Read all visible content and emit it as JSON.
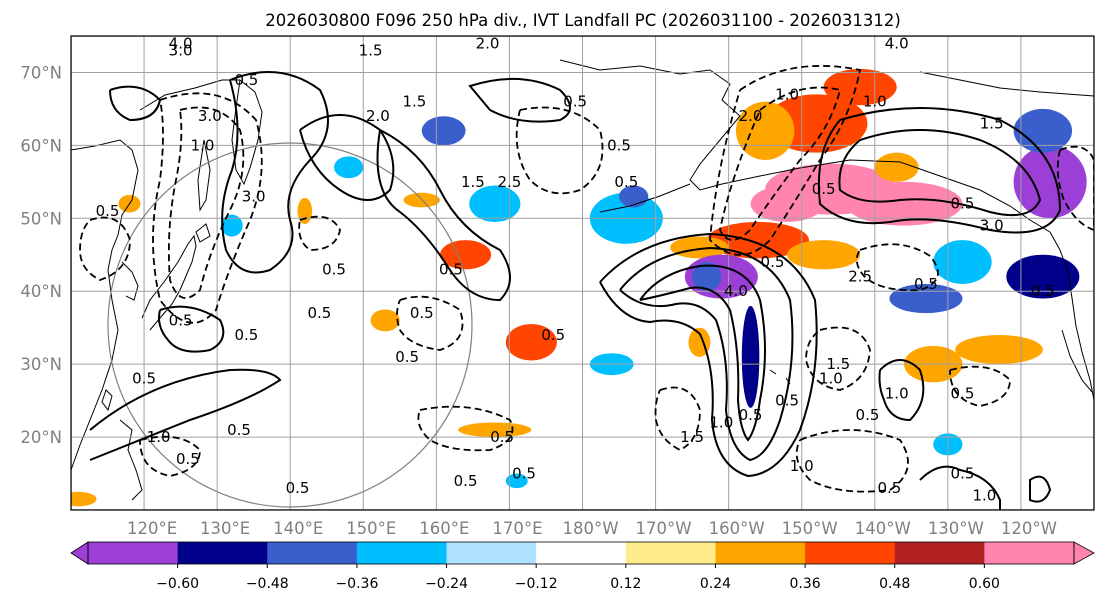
{
  "chart_data": {
    "type": "heatmap",
    "title": "2026030800 F096 250 hPa div., IVT Landfall PC (2026031100 - 2026031312)",
    "map": {
      "lon_range": [
        110,
        250
      ],
      "lat_range": [
        10,
        75
      ],
      "x_ticks": [
        {
          "lon": 120,
          "label": "120°E"
        },
        {
          "lon": 130,
          "label": "130°E"
        },
        {
          "lon": 140,
          "label": "140°E"
        },
        {
          "lon": 150,
          "label": "150°E"
        },
        {
          "lon": 160,
          "label": "160°E"
        },
        {
          "lon": 170,
          "label": "170°E"
        },
        {
          "lon": 180,
          "label": "180°W"
        },
        {
          "lon": 190,
          "label": "170°W"
        },
        {
          "lon": 200,
          "label": "160°W"
        },
        {
          "lon": 210,
          "label": "150°W"
        },
        {
          "lon": 220,
          "label": "140°W"
        },
        {
          "lon": 230,
          "label": "130°W"
        },
        {
          "lon": 240,
          "label": "120°W"
        }
      ],
      "y_ticks": [
        {
          "lat": 20,
          "label": "20°N"
        },
        {
          "lat": 30,
          "label": "30°N"
        },
        {
          "lat": 40,
          "label": "40°N"
        },
        {
          "lat": 50,
          "label": "50°N"
        },
        {
          "lat": 60,
          "label": "60°N"
        },
        {
          "lat": 70,
          "label": "70°N"
        }
      ],
      "grid": true
    },
    "colorbar": {
      "levels": [
        -0.72,
        -0.6,
        -0.48,
        -0.36,
        -0.24,
        -0.12,
        0.12,
        0.24,
        0.36,
        0.48,
        0.6,
        0.72
      ],
      "tick_values": [
        -0.6,
        -0.48,
        -0.36,
        -0.24,
        -0.12,
        0.12,
        0.24,
        0.36,
        0.48,
        0.6
      ],
      "tick_labels": [
        "−0.60",
        "−0.48",
        "−0.36",
        "−0.24",
        "−0.12",
        "0.12",
        "0.24",
        "0.36",
        "0.48",
        "0.60"
      ],
      "colors": [
        "#9b3fd6",
        "#00008b",
        "#3a5fcd",
        "#00bfff",
        "#b0e2ff",
        "#ffffff",
        "#ffec8b",
        "#ffa500",
        "#ff4500",
        "#b22222",
        "#ff85b0"
      ],
      "extend": "both",
      "under_color": "#9b3fd6",
      "over_color": "#ff85b0",
      "orientation": "horizontal",
      "position": "bottom"
    },
    "shading": [
      {
        "lon": 214,
        "lat": 54,
        "rx": 9,
        "ry": 3.5,
        "value": 0.65
      },
      {
        "lon": 224,
        "lat": 52,
        "rx": 8,
        "ry": 3,
        "value": 0.65
      },
      {
        "lon": 208,
        "lat": 52,
        "rx": 5,
        "ry": 2.5,
        "value": 0.65
      },
      {
        "lon": 212,
        "lat": 63,
        "rx": 7,
        "ry": 4,
        "value": 0.42
      },
      {
        "lon": 218,
        "lat": 68,
        "rx": 5,
        "ry": 2.5,
        "value": 0.42
      },
      {
        "lon": 205,
        "lat": 62,
        "rx": 4,
        "ry": 4,
        "value": 0.3
      },
      {
        "lon": 204,
        "lat": 47,
        "rx": 7,
        "ry": 2.5,
        "value": 0.42
      },
      {
        "lon": 213,
        "lat": 45,
        "rx": 5,
        "ry": 2,
        "value": 0.3
      },
      {
        "lon": 196,
        "lat": 46,
        "rx": 4,
        "ry": 1.5,
        "value": 0.3
      },
      {
        "lon": 173,
        "lat": 33,
        "rx": 3.5,
        "ry": 2.5,
        "value": 0.42
      },
      {
        "lon": 164,
        "lat": 45,
        "rx": 3.5,
        "ry": 2,
        "value": 0.42
      },
      {
        "lon": 158,
        "lat": 52.5,
        "rx": 2.5,
        "ry": 1,
        "value": 0.3
      },
      {
        "lon": 142,
        "lat": 51,
        "rx": 1,
        "ry": 1.8,
        "value": 0.3
      },
      {
        "lon": 118,
        "lat": 52,
        "rx": 1.5,
        "ry": 1.2,
        "value": 0.3
      },
      {
        "lon": 153,
        "lat": 36,
        "rx": 2,
        "ry": 1.5,
        "value": 0.3
      },
      {
        "lon": 196,
        "lat": 33,
        "rx": 1.5,
        "ry": 2,
        "value": 0.3
      },
      {
        "lon": 237,
        "lat": 32,
        "rx": 6,
        "ry": 2,
        "value": 0.3
      },
      {
        "lon": 168,
        "lat": 21,
        "rx": 5,
        "ry": 1,
        "value": 0.24
      },
      {
        "lon": 111,
        "lat": 11.5,
        "rx": 2.5,
        "ry": 1,
        "value": 0.3
      },
      {
        "lon": 228,
        "lat": 30,
        "rx": 4,
        "ry": 2.5,
        "value": 0.3
      },
      {
        "lon": 223,
        "lat": 57,
        "rx": 3,
        "ry": 2,
        "value": 0.24
      },
      {
        "lon": 199,
        "lat": 42,
        "rx": 5,
        "ry": 3,
        "value": -0.7
      },
      {
        "lon": 203,
        "lat": 31,
        "rx": 1.2,
        "ry": 7,
        "value": -0.55
      },
      {
        "lon": 197,
        "lat": 42,
        "rx": 2,
        "ry": 2,
        "value": -0.4
      },
      {
        "lon": 244,
        "lat": 55,
        "rx": 5,
        "ry": 5,
        "value": -0.7
      },
      {
        "lon": 243,
        "lat": 62,
        "rx": 4,
        "ry": 3,
        "value": -0.4
      },
      {
        "lon": 243,
        "lat": 42,
        "rx": 5,
        "ry": 3,
        "value": -0.55
      },
      {
        "lon": 227,
        "lat": 39,
        "rx": 5,
        "ry": 2,
        "value": -0.4
      },
      {
        "lon": 232,
        "lat": 44,
        "rx": 4,
        "ry": 3,
        "value": -0.3
      },
      {
        "lon": 186,
        "lat": 50,
        "rx": 5,
        "ry": 3.5,
        "value": -0.3
      },
      {
        "lon": 187,
        "lat": 53,
        "rx": 2,
        "ry": 1.5,
        "value": -0.4
      },
      {
        "lon": 168,
        "lat": 52,
        "rx": 3.5,
        "ry": 2.5,
        "value": -0.3
      },
      {
        "lon": 161,
        "lat": 62,
        "rx": 3,
        "ry": 2,
        "value": -0.4
      },
      {
        "lon": 184,
        "lat": 30,
        "rx": 3,
        "ry": 1.5,
        "value": -0.3
      },
      {
        "lon": 148,
        "lat": 57,
        "rx": 2,
        "ry": 1.5,
        "value": -0.3
      },
      {
        "lon": 132,
        "lat": 49,
        "rx": 1.5,
        "ry": 1.5,
        "value": -0.3
      },
      {
        "lon": 171,
        "lat": 14,
        "rx": 1.5,
        "ry": 1,
        "value": -0.3
      },
      {
        "lon": 230,
        "lat": 19,
        "rx": 2,
        "ry": 1.5,
        "value": -0.3
      }
    ],
    "contours": {
      "labels": [
        {
          "lon": 125,
          "lat": 74,
          "text": "4.0"
        },
        {
          "lon": 125,
          "lat": 73,
          "text": "3.0"
        },
        {
          "lon": 151,
          "lat": 73,
          "text": "1.5"
        },
        {
          "lon": 167,
          "lat": 74,
          "text": "2.0"
        },
        {
          "lon": 134,
          "lat": 69,
          "text": "0.5"
        },
        {
          "lon": 152,
          "lat": 64,
          "text": "2.0"
        },
        {
          "lon": 157,
          "lat": 66,
          "text": "1.5"
        },
        {
          "lon": 179,
          "lat": 66,
          "text": "0.5"
        },
        {
          "lon": 208,
          "lat": 67,
          "text": "1.0"
        },
        {
          "lon": 203,
          "lat": 64,
          "text": "2.0"
        },
        {
          "lon": 223,
          "lat": 74,
          "text": "4.0"
        },
        {
          "lon": 220,
          "lat": 66,
          "text": "1.0"
        },
        {
          "lon": 236,
          "lat": 63,
          "text": "1.5"
        },
        {
          "lon": 232,
          "lat": 52,
          "text": "0.5"
        },
        {
          "lon": 236,
          "lat": 49,
          "text": "3.0"
        },
        {
          "lon": 213,
          "lat": 54,
          "text": "0.5"
        },
        {
          "lon": 227,
          "lat": 41,
          "text": "0.5"
        },
        {
          "lon": 243,
          "lat": 40,
          "text": "0.5"
        },
        {
          "lon": 201,
          "lat": 40,
          "text": "4.0"
        },
        {
          "lon": 206,
          "lat": 44,
          "text": "0.5"
        },
        {
          "lon": 218,
          "lat": 42,
          "text": "2.5"
        },
        {
          "lon": 185,
          "lat": 60,
          "text": "0.5"
        },
        {
          "lon": 186,
          "lat": 55,
          "text": "0.5"
        },
        {
          "lon": 165,
          "lat": 55,
          "text": "1.5"
        },
        {
          "lon": 170,
          "lat": 55,
          "text": "2.5"
        },
        {
          "lon": 162,
          "lat": 43,
          "text": "0.5"
        },
        {
          "lon": 158,
          "lat": 37,
          "text": "0.5"
        },
        {
          "lon": 176,
          "lat": 34,
          "text": "0.5"
        },
        {
          "lon": 156,
          "lat": 31,
          "text": "0.5"
        },
        {
          "lon": 146,
          "lat": 43,
          "text": "0.5"
        },
        {
          "lon": 144,
          "lat": 37,
          "text": "0.5"
        },
        {
          "lon": 134,
          "lat": 34,
          "text": "0.5"
        },
        {
          "lon": 125,
          "lat": 36,
          "text": "0.5"
        },
        {
          "lon": 120,
          "lat": 28,
          "text": "0.5"
        },
        {
          "lon": 135,
          "lat": 53,
          "text": "3.0"
        },
        {
          "lon": 128,
          "lat": 60,
          "text": "1.0"
        },
        {
          "lon": 129,
          "lat": 64,
          "text": "3.0"
        },
        {
          "lon": 115,
          "lat": 51,
          "text": "0.5"
        },
        {
          "lon": 122,
          "lat": 20,
          "text": "1.0"
        },
        {
          "lon": 126,
          "lat": 17,
          "text": "0.5"
        },
        {
          "lon": 133,
          "lat": 21,
          "text": "0.5"
        },
        {
          "lon": 141,
          "lat": 13,
          "text": "0.5"
        },
        {
          "lon": 169,
          "lat": 20,
          "text": "0.5"
        },
        {
          "lon": 164,
          "lat": 14,
          "text": "0.5"
        },
        {
          "lon": 172,
          "lat": 15,
          "text": "0.5"
        },
        {
          "lon": 203,
          "lat": 23,
          "text": "0.5"
        },
        {
          "lon": 208,
          "lat": 25,
          "text": "0.5"
        },
        {
          "lon": 215,
          "lat": 30,
          "text": "1.5"
        },
        {
          "lon": 214,
          "lat": 28,
          "text": "1.0"
        },
        {
          "lon": 210,
          "lat": 16,
          "text": "1.0"
        },
        {
          "lon": 219,
          "lat": 23,
          "text": "0.5"
        },
        {
          "lon": 223,
          "lat": 26,
          "text": "1.0"
        },
        {
          "lon": 222,
          "lat": 13,
          "text": "0.5"
        },
        {
          "lon": 232,
          "lat": 15,
          "text": "0.5"
        },
        {
          "lon": 235,
          "lat": 12,
          "text": "1.0"
        },
        {
          "lon": 232,
          "lat": 26,
          "text": "0.5"
        },
        {
          "lon": 195,
          "lat": 20,
          "text": "1.5"
        },
        {
          "lon": 199,
          "lat": 22,
          "text": "1.0"
        }
      ]
    }
  }
}
